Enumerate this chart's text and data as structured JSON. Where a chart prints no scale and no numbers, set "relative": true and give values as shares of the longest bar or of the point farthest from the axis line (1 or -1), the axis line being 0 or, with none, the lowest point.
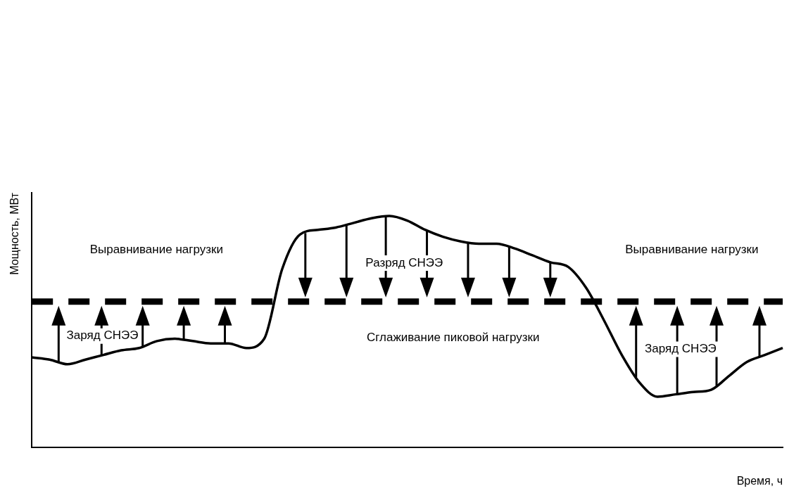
{
  "chart_data": {
    "type": "line",
    "relative": true,
    "xlabel": "Время, ч",
    "ylabel": "Мощность, МВт",
    "categories": [
      null,
      null,
      null,
      null,
      null,
      null,
      null,
      null,
      null,
      null,
      null,
      null,
      null,
      null,
      null,
      null,
      null,
      null,
      null,
      null,
      null,
      null,
      null,
      null,
      null,
      null,
      null,
      null,
      null,
      null,
      null,
      null,
      null,
      null,
      null,
      null,
      null,
      null,
      null,
      null,
      null,
      null,
      null
    ],
    "series": [
      {
        "color": "#000000",
        "values": [
          0.39,
          0.38,
          0.36,
          0.38,
          0.4,
          0.42,
          0.43,
          0.46,
          0.47,
          0.46,
          0.45,
          0.45,
          0.43,
          0.47,
          0.77,
          0.92,
          0.94,
          0.95,
          0.97,
          0.99,
          1.0,
          0.98,
          0.94,
          0.91,
          0.89,
          0.88,
          0.88,
          0.86,
          0.83,
          0.8,
          0.78,
          0.69,
          0.55,
          0.4,
          0.28,
          0.22,
          0.23,
          0.24,
          0.25,
          0.31,
          0.37,
          0.4,
          0.43
        ]
      }
    ],
    "ref_lines": [
      {
        "axis": "y",
        "value": 0.63,
        "color": "#000000",
        "line_style": "dashed"
      }
    ],
    "annotations": [
      "Выравнивание нагрузки",
      "Разряд СНЭЭ",
      "Выравнивание нагрузки",
      "Заряд СНЭЭ",
      "Сглаживание пиковой нагрузки",
      "Заряд СНЭЭ"
    ],
    "grid": false,
    "legend": false,
    "marker": "none",
    "line_style": "solid"
  }
}
